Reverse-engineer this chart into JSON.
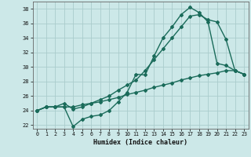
{
  "xlabel": "Humidex (Indice chaleur)",
  "xlim": [
    -0.5,
    23.5
  ],
  "ylim": [
    21.5,
    39.0
  ],
  "yticks": [
    22,
    24,
    26,
    28,
    30,
    32,
    34,
    36,
    38
  ],
  "xticks": [
    0,
    1,
    2,
    3,
    4,
    5,
    6,
    7,
    8,
    9,
    10,
    11,
    12,
    13,
    14,
    15,
    16,
    17,
    18,
    19,
    20,
    21,
    22,
    23
  ],
  "bg_color": "#cce8e8",
  "grid_color": "#aacccc",
  "line_color": "#1a6b5a",
  "line1_x": [
    0,
    1,
    2,
    3,
    4,
    5,
    6,
    7,
    8,
    9,
    10,
    11,
    12,
    13,
    14,
    15,
    16,
    17,
    18,
    19,
    20,
    21,
    22,
    23
  ],
  "line1_y": [
    24.0,
    24.5,
    24.5,
    24.5,
    21.8,
    22.8,
    23.2,
    23.4,
    24.0,
    25.2,
    26.5,
    29.0,
    28.9,
    31.5,
    34.0,
    35.5,
    37.2,
    38.2,
    37.5,
    36.2,
    30.5,
    30.2,
    29.5,
    29.0
  ],
  "line2_x": [
    0,
    1,
    2,
    3,
    4,
    5,
    6,
    7,
    8,
    9,
    10,
    11,
    12,
    13,
    14,
    15,
    16,
    17,
    18,
    19,
    20,
    21,
    22,
    23
  ],
  "line2_y": [
    24.0,
    24.5,
    24.5,
    25.0,
    24.2,
    24.5,
    25.0,
    25.5,
    26.0,
    26.8,
    27.5,
    28.2,
    29.5,
    31.0,
    32.5,
    34.0,
    35.5,
    37.0,
    37.2,
    36.5,
    36.2,
    33.8,
    29.5,
    29.0
  ],
  "line3_x": [
    0,
    1,
    2,
    3,
    4,
    5,
    6,
    7,
    8,
    9,
    10,
    11,
    12,
    13,
    14,
    15,
    16,
    17,
    18,
    19,
    20,
    21,
    22,
    23
  ],
  "line3_y": [
    24.0,
    24.5,
    24.5,
    24.5,
    24.5,
    24.8,
    25.0,
    25.2,
    25.5,
    25.8,
    26.2,
    26.5,
    26.8,
    27.2,
    27.5,
    27.8,
    28.2,
    28.5,
    28.8,
    29.0,
    29.2,
    29.5,
    29.5,
    29.0
  ],
  "marker": "D",
  "marker_size": 2.0,
  "linewidth": 1.0
}
